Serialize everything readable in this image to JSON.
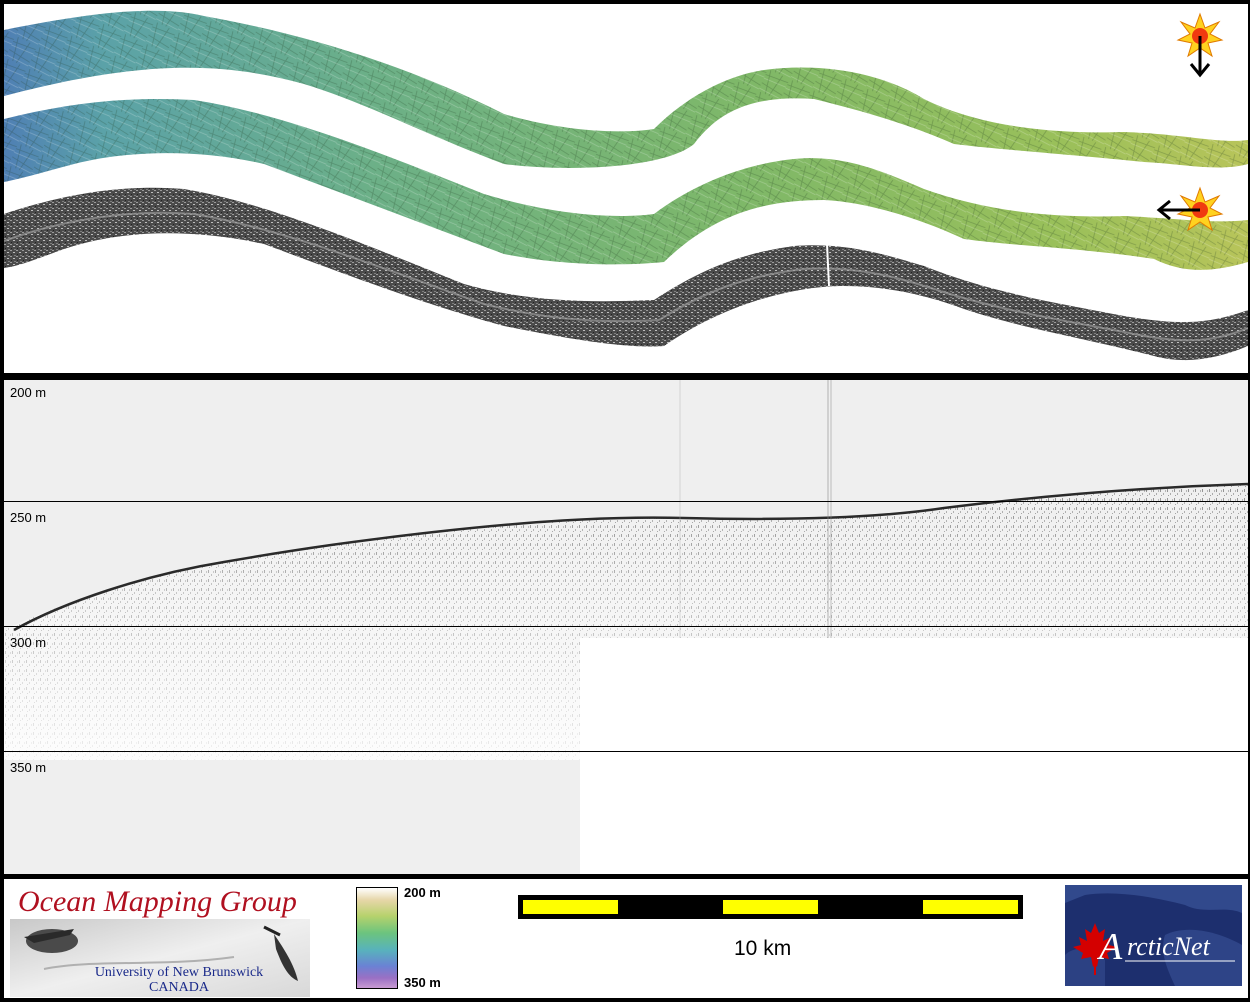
{
  "profile": {
    "depth_labels": [
      "200 m",
      "250 m",
      "300 m",
      "350 m"
    ]
  },
  "legend": {
    "logo": {
      "title": "Ocean Mapping Group",
      "line1": "University of New Brunswick",
      "line2": "CANADA"
    },
    "colorbar": {
      "top_label": "200 m",
      "bottom_label": "350 m"
    },
    "scale_bar": {
      "label": "10 km",
      "segments": 5
    },
    "arcticnet": {
      "logo_text": "ArcticNet"
    }
  },
  "colors": {
    "scale_yellow": "#ffff00",
    "logo_red": "#b01020",
    "logo_blue": "#1a2a8a",
    "arcticnet_bg": "#1d2f6e",
    "maple_red": "#d40000"
  },
  "icons": {
    "sun_top": "sun-illumination-icon",
    "sun_mid": "sun-illumination-icon",
    "arrow_top": "arrow-down-icon",
    "arrow_mid": "arrow-left-icon"
  }
}
